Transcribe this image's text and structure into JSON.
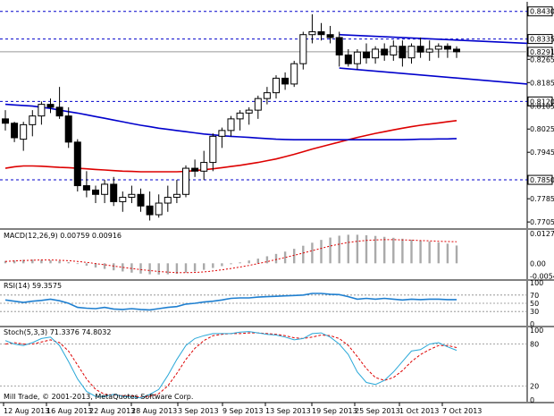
{
  "chart_data": {
    "type": "candlestick",
    "x_labels": [
      "12 Aug 2013",
      "16 Aug 2013",
      "22 Aug 2013",
      "28 Aug 2013",
      "3 Sep 2013",
      "9 Sep 2013",
      "13 Sep 2013",
      "19 Sep 2013",
      "25 Sep 2013",
      "1 Oct 2013",
      "7 Oct 2013"
    ],
    "price_axis": {
      "ylim": [
        0.769,
        0.846
      ],
      "ticks": [
        "0.8430",
        "0.8335",
        "0.8291",
        "0.8265",
        "0.8185",
        "0.8120",
        "0.8105",
        "0.8025",
        "0.7945",
        "0.7850",
        "0.7785",
        "0.7705"
      ],
      "highlight_labels": [
        "0.8430",
        "0.8335",
        "0.8291",
        "0.8120",
        "0.7850"
      ]
    },
    "horizontal_levels": [
      0.843,
      0.8335,
      0.812,
      0.785
    ],
    "current_price": 0.8291,
    "candles": [
      [
        0.806,
        0.809,
        0.802,
        0.8045
      ],
      [
        0.8045,
        0.805,
        0.798,
        0.7995
      ],
      [
        0.799,
        0.805,
        0.795,
        0.804
      ],
      [
        0.804,
        0.809,
        0.8,
        0.807
      ],
      [
        0.807,
        0.812,
        0.804,
        0.811
      ],
      [
        0.811,
        0.813,
        0.808,
        0.81
      ],
      [
        0.81,
        0.817,
        0.806,
        0.807
      ],
      [
        0.807,
        0.81,
        0.796,
        0.798
      ],
      [
        0.798,
        0.799,
        0.781,
        0.783
      ],
      [
        0.783,
        0.788,
        0.779,
        0.7815
      ],
      [
        0.7815,
        0.783,
        0.777,
        0.78
      ],
      [
        0.78,
        0.785,
        0.777,
        0.7835
      ],
      [
        0.7835,
        0.786,
        0.776,
        0.7775
      ],
      [
        0.7775,
        0.781,
        0.774,
        0.779
      ],
      [
        0.779,
        0.783,
        0.777,
        0.78
      ],
      [
        0.78,
        0.782,
        0.774,
        0.776
      ],
      [
        0.776,
        0.781,
        0.771,
        0.773
      ],
      [
        0.773,
        0.78,
        0.772,
        0.777
      ],
      [
        0.777,
        0.783,
        0.774,
        0.779
      ],
      [
        0.779,
        0.785,
        0.777,
        0.78
      ],
      [
        0.78,
        0.79,
        0.779,
        0.789
      ],
      [
        0.789,
        0.792,
        0.786,
        0.788
      ],
      [
        0.788,
        0.795,
        0.785,
        0.791
      ],
      [
        0.791,
        0.801,
        0.788,
        0.8
      ],
      [
        0.8,
        0.803,
        0.796,
        0.802
      ],
      [
        0.802,
        0.807,
        0.8,
        0.806
      ],
      [
        0.806,
        0.809,
        0.802,
        0.808
      ],
      [
        0.808,
        0.81,
        0.804,
        0.809
      ],
      [
        0.809,
        0.814,
        0.806,
        0.813
      ],
      [
        0.813,
        0.817,
        0.811,
        0.815
      ],
      [
        0.815,
        0.821,
        0.813,
        0.82
      ],
      [
        0.82,
        0.822,
        0.816,
        0.818
      ],
      [
        0.818,
        0.826,
        0.817,
        0.825
      ],
      [
        0.825,
        0.836,
        0.823,
        0.835
      ],
      [
        0.835,
        0.842,
        0.832,
        0.836
      ],
      [
        0.836,
        0.839,
        0.833,
        0.835
      ],
      [
        0.835,
        0.838,
        0.832,
        0.834
      ],
      [
        0.834,
        0.836,
        0.824,
        0.828
      ],
      [
        0.828,
        0.83,
        0.824,
        0.825
      ],
      [
        0.825,
        0.83,
        0.823,
        0.829
      ],
      [
        0.829,
        0.832,
        0.825,
        0.827
      ],
      [
        0.827,
        0.831,
        0.825,
        0.83
      ],
      [
        0.83,
        0.832,
        0.826,
        0.828
      ],
      [
        0.828,
        0.833,
        0.826,
        0.831
      ],
      [
        0.831,
        0.833,
        0.824,
        0.827
      ],
      [
        0.827,
        0.832,
        0.825,
        0.831
      ],
      [
        0.831,
        0.834,
        0.827,
        0.829
      ],
      [
        0.829,
        0.833,
        0.826,
        0.83
      ],
      [
        0.83,
        0.832,
        0.827,
        0.831
      ],
      [
        0.831,
        0.832,
        0.827,
        0.83
      ],
      [
        0.83,
        0.831,
        0.827,
        0.8291
      ]
    ],
    "ma_blue": [
      0.811,
      0.8108,
      0.8106,
      0.8104,
      0.81,
      0.8096,
      0.809,
      0.8085,
      0.808,
      0.8074,
      0.8068,
      0.8062,
      0.8056,
      0.805,
      0.8044,
      0.8038,
      0.8033,
      0.8028,
      0.8024,
      0.802,
      0.8016,
      0.8012,
      0.8008,
      0.8005,
      0.8002,
      0.8,
      0.7998,
      0.7996,
      0.7994,
      0.7992,
      0.799,
      0.7989,
      0.7988,
      0.7988,
      0.7988,
      0.7988,
      0.7988,
      0.7988,
      0.7988,
      0.7988,
      0.7988,
      0.7988,
      0.7988,
      0.7988,
      0.7988,
      0.7989,
      0.799,
      0.799,
      0.7991,
      0.7991,
      0.7992
    ],
    "ma_red": [
      0.789,
      0.7895,
      0.7898,
      0.7898,
      0.7897,
      0.7895,
      0.7893,
      0.7892,
      0.789,
      0.7888,
      0.7886,
      0.7884,
      0.7882,
      0.788,
      0.7879,
      0.7878,
      0.7878,
      0.7878,
      0.7878,
      0.7878,
      0.7879,
      0.7882,
      0.7885,
      0.7888,
      0.7892,
      0.7896,
      0.79,
      0.7905,
      0.791,
      0.7916,
      0.7922,
      0.793,
      0.7938,
      0.7947,
      0.7956,
      0.7964,
      0.7972,
      0.798,
      0.7988,
      0.7996,
      0.8003,
      0.801,
      0.8016,
      0.8022,
      0.8028,
      0.8033,
      0.8038,
      0.8042,
      0.8046,
      0.805,
      0.8054
    ],
    "channel": {
      "upper": [
        [
          37,
          0.835
        ],
        [
          57,
          0.832
        ]
      ],
      "lower": [
        [
          37,
          0.8235
        ],
        [
          57,
          0.818
        ]
      ]
    },
    "macd": {
      "label": "MACD(12,26,9) 0.00759 0.00916",
      "ylim": [
        -0.006,
        0.0135
      ],
      "ticks": [
        "0.01277",
        "0.00",
        "-0.00546"
      ],
      "histogram": [
        0.001,
        0.0012,
        0.0015,
        0.0016,
        0.0015,
        0.0013,
        0.001,
        0.0005,
        -0.0002,
        -0.001,
        -0.0018,
        -0.0024,
        -0.003,
        -0.0035,
        -0.004,
        -0.0044,
        -0.0047,
        -0.0048,
        -0.0047,
        -0.0045,
        -0.004,
        -0.0035,
        -0.0028,
        -0.002,
        -0.0012,
        -0.0004,
        0.0004,
        0.0012,
        0.002,
        0.003,
        0.004,
        0.005,
        0.0062,
        0.0075,
        0.0088,
        0.01,
        0.011,
        0.0118,
        0.0122,
        0.0122,
        0.012,
        0.0117,
        0.0113,
        0.0109,
        0.0105,
        0.0101,
        0.0097,
        0.0093,
        0.0089,
        0.0084,
        0.0076
      ],
      "signal": [
        0.0008,
        0.001,
        0.0012,
        0.0013,
        0.0014,
        0.0014,
        0.0013,
        0.0011,
        0.0008,
        0.0004,
        -0.0001,
        -0.0006,
        -0.0012,
        -0.0017,
        -0.0022,
        -0.0027,
        -0.0031,
        -0.0035,
        -0.0038,
        -0.004,
        -0.004,
        -0.0039,
        -0.0037,
        -0.0033,
        -0.0028,
        -0.0022,
        -0.0016,
        -0.0009,
        -0.0001,
        0.0007,
        0.0016,
        0.0025,
        0.0034,
        0.0044,
        0.0054,
        0.0064,
        0.0074,
        0.0082,
        0.0089,
        0.0094,
        0.0098,
        0.01,
        0.0101,
        0.0101,
        0.01,
        0.0099,
        0.0097,
        0.0096,
        0.0094,
        0.0093,
        0.0092
      ]
    },
    "rsi": {
      "label": "RSI(14) 59.3575",
      "ylim": [
        0,
        100
      ],
      "ticks": [
        "100",
        "70",
        "50",
        "30",
        "0"
      ],
      "levels": [
        70,
        50,
        30
      ],
      "values": [
        58,
        55,
        52,
        55,
        57,
        60,
        56,
        50,
        40,
        38,
        37,
        40,
        36,
        35,
        37,
        35,
        34,
        37,
        40,
        42,
        48,
        50,
        53,
        55,
        58,
        62,
        63,
        63,
        65,
        66,
        67,
        68,
        69,
        70,
        74,
        74,
        72,
        71,
        66,
        60,
        62,
        60,
        62,
        60,
        58,
        60,
        59,
        60,
        60,
        59,
        59
      ]
    },
    "stoch": {
      "label": "Stoch(5,3,3) 71.3376 74.8032",
      "ylim": [
        0,
        100
      ],
      "ticks": [
        "100",
        "80",
        "20",
        "0"
      ],
      "levels": [
        80,
        20
      ],
      "main": [
        85,
        80,
        78,
        82,
        88,
        90,
        78,
        55,
        30,
        12,
        5,
        5,
        8,
        5,
        4,
        3,
        8,
        15,
        35,
        58,
        78,
        88,
        92,
        95,
        95,
        95,
        97,
        98,
        96,
        94,
        93,
        90,
        86,
        88,
        95,
        96,
        90,
        80,
        65,
        40,
        25,
        22,
        28,
        40,
        55,
        70,
        72,
        80,
        82,
        76,
        71
      ],
      "signal": [
        80,
        82,
        80,
        80,
        83,
        86,
        82,
        70,
        50,
        30,
        15,
        8,
        7,
        6,
        6,
        4,
        5,
        9,
        20,
        38,
        58,
        74,
        85,
        92,
        94,
        95,
        95,
        96,
        96,
        95,
        94,
        92,
        89,
        88,
        90,
        93,
        92,
        88,
        78,
        62,
        45,
        32,
        28,
        32,
        42,
        55,
        65,
        72,
        78,
        78,
        75
      ]
    },
    "footer": "Mill Trade, © 2001-2013, MetaQuotes Software Corp.",
    "colors": {
      "bg": "#ffffff",
      "grid_dash": "#0000cc",
      "ma_blue": "#0000cc",
      "ma_red": "#dd0000",
      "channel": "#0000cc",
      "rsi": "#1e7fd0",
      "stoch_main": "#2aa8d8",
      "stoch_signal": "#dd0000",
      "hist": "#aaaaaa"
    }
  }
}
